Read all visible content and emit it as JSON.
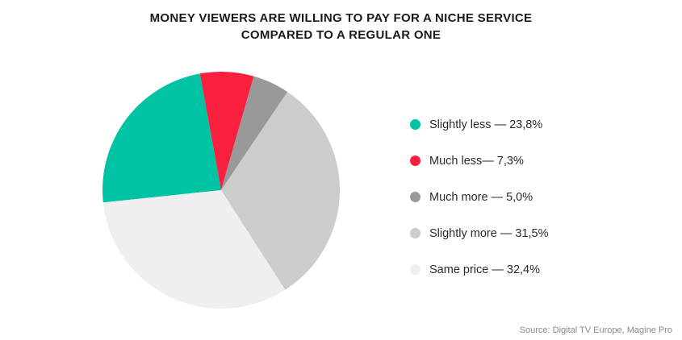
{
  "chart_data": {
    "type": "pie",
    "title_lines": [
      "MONEY VIEWERS ARE WILLING TO PAY FOR A NICHE SERVICE",
      "COMPARED TO A REGULAR ONE"
    ],
    "slices": [
      {
        "legend": "Slightly less — 23,8%",
        "value": 23.8,
        "color": "#00c3a3"
      },
      {
        "legend": "Much less— 7,3%",
        "value": 7.3,
        "color": "#f81f3f"
      },
      {
        "legend": "Much more — 5,0%",
        "value": 5.0,
        "color": "#999999"
      },
      {
        "legend": "Slightly more — 31,5%",
        "value": 31.5,
        "color": "#cccccc"
      },
      {
        "legend": "Same price — 32,4%",
        "value": 32.4,
        "color": "#efeff1"
      }
    ],
    "legend_position": "right",
    "source": "Source: Digital TV Europe, Magine Pro"
  }
}
